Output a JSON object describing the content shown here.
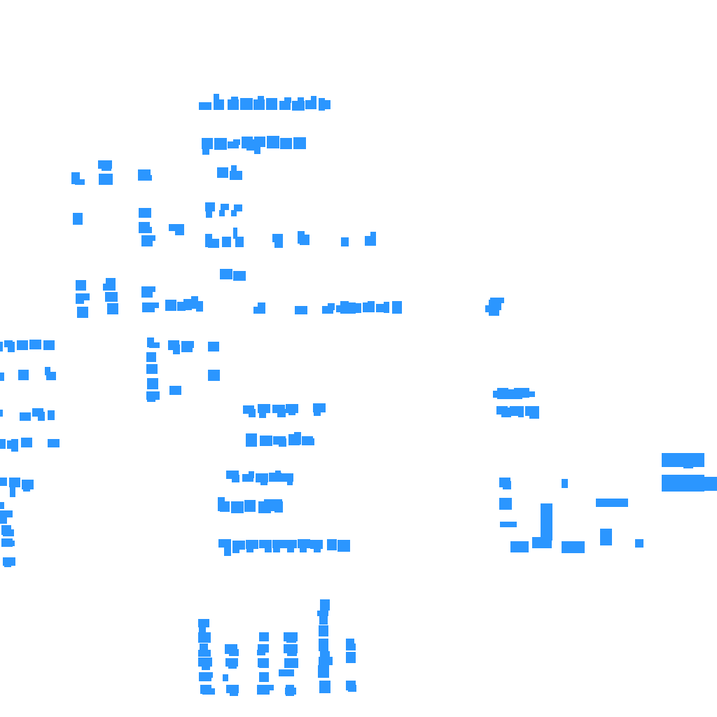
{
  "map": {
    "background_color": "#ffffff",
    "building_color": "#2b96ff",
    "feature_type": "building-footprints"
  }
}
